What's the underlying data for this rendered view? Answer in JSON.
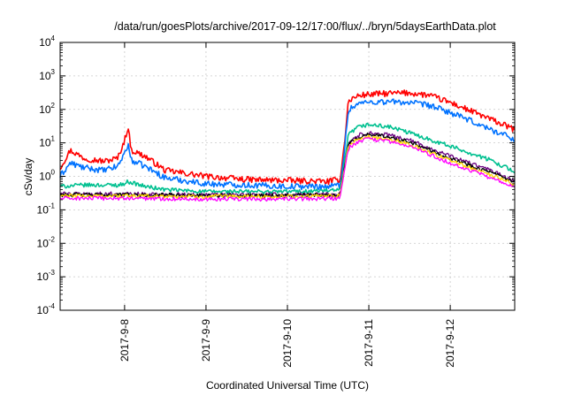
{
  "chart_data": {
    "type": "line",
    "title": "/data/run/goesPlots/archive/2017-09-12/17:00/flux/../bryn/5daysEarthData.plot",
    "xlabel": "Coordinated Universal Time (UTC)",
    "ylabel": "cSv/day",
    "yscale": "log",
    "ylim_exp": [
      -4,
      4
    ],
    "ytick_base": "10",
    "ytick_exponents": [
      "-4",
      "-3",
      "-2",
      "-1",
      "0",
      "1",
      "2",
      "3",
      "4"
    ],
    "xlim": [
      "2017-09-07 05:00",
      "2017-09-12 19:00"
    ],
    "xticks": [
      {
        "label": "2017-9-8",
        "date": "2017-09-08 00:00"
      },
      {
        "label": "2017-9-9",
        "date": "2017-09-09 00:00"
      },
      {
        "label": "2017-9-10",
        "date": "2017-09-10 00:00"
      },
      {
        "label": "2017-9-11",
        "date": "2017-09-11 00:00"
      },
      {
        "label": "2017-9-12",
        "date": "2017-09-12 00:00"
      }
    ],
    "grid": true,
    "series": [
      {
        "color": "#ff0000",
        "x": [
          "2017-09-07 05:00",
          "2017-09-07 08:00",
          "2017-09-07 12:00",
          "2017-09-07 18:00",
          "2017-09-07 22:00",
          "2017-09-08 00:00",
          "2017-09-08 01:00",
          "2017-09-08 02:00",
          "2017-09-08 06:00",
          "2017-09-08 12:00",
          "2017-09-09 00:00",
          "2017-09-09 12:00",
          "2017-09-10 00:00",
          "2017-09-10 12:00",
          "2017-09-10 15:30",
          "2017-09-10 16:30",
          "2017-09-10 18:00",
          "2017-09-10 21:00",
          "2017-09-11 00:00",
          "2017-09-11 06:00",
          "2017-09-11 12:00",
          "2017-09-11 18:00",
          "2017-09-12 00:00",
          "2017-09-12 06:00",
          "2017-09-12 12:00",
          "2017-09-12 19:00"
        ],
        "y": [
          1.8,
          6.0,
          3.5,
          2.8,
          3.5,
          12,
          30,
          6,
          4,
          1.5,
          1.0,
          0.8,
          0.75,
          0.7,
          0.8,
          5,
          180,
          260,
          280,
          300,
          310,
          260,
          160,
          90,
          50,
          25
        ]
      },
      {
        "color": "#0072ff",
        "x": [
          "2017-09-07 05:00",
          "2017-09-07 08:00",
          "2017-09-07 12:00",
          "2017-09-07 18:00",
          "2017-09-07 22:00",
          "2017-09-08 00:00",
          "2017-09-08 01:00",
          "2017-09-08 02:00",
          "2017-09-08 06:00",
          "2017-09-08 12:00",
          "2017-09-09 00:00",
          "2017-09-09 12:00",
          "2017-09-10 00:00",
          "2017-09-10 12:00",
          "2017-09-10 15:30",
          "2017-09-10 16:30",
          "2017-09-10 18:00",
          "2017-09-10 21:00",
          "2017-09-11 00:00",
          "2017-09-11 06:00",
          "2017-09-11 12:00",
          "2017-09-11 18:00",
          "2017-09-12 00:00",
          "2017-09-12 06:00",
          "2017-09-12 12:00",
          "2017-09-12 19:00"
        ],
        "y": [
          1.0,
          2.5,
          1.8,
          1.5,
          2.0,
          5,
          9,
          3,
          2,
          0.9,
          0.6,
          0.55,
          0.5,
          0.5,
          0.55,
          3,
          100,
          150,
          165,
          170,
          160,
          130,
          80,
          45,
          25,
          13
        ]
      },
      {
        "color": "#00c090",
        "x": [
          "2017-09-07 05:00",
          "2017-09-07 12:00",
          "2017-09-07 22:00",
          "2017-09-08 00:00",
          "2017-09-08 01:00",
          "2017-09-08 06:00",
          "2017-09-08 12:00",
          "2017-09-09 00:00",
          "2017-09-10 00:00",
          "2017-09-10 15:30",
          "2017-09-10 16:30",
          "2017-09-10 18:00",
          "2017-09-10 21:00",
          "2017-09-11 00:00",
          "2017-09-11 06:00",
          "2017-09-11 12:00",
          "2017-09-12 00:00",
          "2017-09-12 12:00",
          "2017-09-12 19:00"
        ],
        "y": [
          0.5,
          0.55,
          0.55,
          0.6,
          0.7,
          0.5,
          0.4,
          0.35,
          0.35,
          0.38,
          1.5,
          18,
          30,
          35,
          30,
          20,
          8,
          3,
          1.4
        ]
      },
      {
        "color": "#6a0080",
        "x": [
          "2017-09-07 05:00",
          "2017-09-08 00:00",
          "2017-09-09 00:00",
          "2017-09-10 00:00",
          "2017-09-10 15:30",
          "2017-09-10 16:30",
          "2017-09-10 18:00",
          "2017-09-10 21:00",
          "2017-09-11 00:00",
          "2017-09-11 06:00",
          "2017-09-11 12:00",
          "2017-09-12 00:00",
          "2017-09-12 12:00",
          "2017-09-12 19:00"
        ],
        "y": [
          0.3,
          0.3,
          0.28,
          0.28,
          0.3,
          1.2,
          10,
          17,
          20,
          17,
          12,
          4,
          1.5,
          0.7
        ]
      },
      {
        "color": "#000000",
        "x": [
          "2017-09-07 05:00",
          "2017-09-08 00:00",
          "2017-09-09 00:00",
          "2017-09-10 00:00",
          "2017-09-10 15:30",
          "2017-09-10 16:30",
          "2017-09-10 18:00",
          "2017-09-10 21:00",
          "2017-09-11 00:00",
          "2017-09-11 06:00",
          "2017-09-11 12:00",
          "2017-09-12 00:00",
          "2017-09-12 12:00",
          "2017-09-12 19:00"
        ],
        "y": [
          0.28,
          0.28,
          0.27,
          0.27,
          0.28,
          1.1,
          9,
          15,
          18,
          15,
          11,
          3.5,
          1.3,
          0.65
        ]
      },
      {
        "color": "#ffd700",
        "x": [
          "2017-09-07 05:00",
          "2017-09-08 00:00",
          "2017-09-09 00:00",
          "2017-09-10 00:00",
          "2017-09-10 15:30",
          "2017-09-10 16:30",
          "2017-09-10 18:00",
          "2017-09-10 21:00",
          "2017-09-11 00:00",
          "2017-09-11 06:00",
          "2017-09-11 12:00",
          "2017-09-12 00:00",
          "2017-09-12 12:00",
          "2017-09-12 19:00"
        ],
        "y": [
          0.26,
          0.26,
          0.25,
          0.25,
          0.26,
          1.0,
          8,
          13,
          15,
          13,
          9,
          3,
          1.1,
          0.55
        ]
      },
      {
        "color": "#ff00ff",
        "x": [
          "2017-09-07 05:00",
          "2017-09-08 00:00",
          "2017-09-09 00:00",
          "2017-09-10 00:00",
          "2017-09-10 15:30",
          "2017-09-10 16:30",
          "2017-09-10 18:00",
          "2017-09-10 21:00",
          "2017-09-11 00:00",
          "2017-09-11 06:00",
          "2017-09-11 12:00",
          "2017-09-12 00:00",
          "2017-09-12 12:00",
          "2017-09-12 19:00"
        ],
        "y": [
          0.22,
          0.22,
          0.21,
          0.21,
          0.22,
          0.9,
          7,
          11,
          13,
          11,
          8,
          2.5,
          0.9,
          0.45
        ]
      }
    ]
  }
}
